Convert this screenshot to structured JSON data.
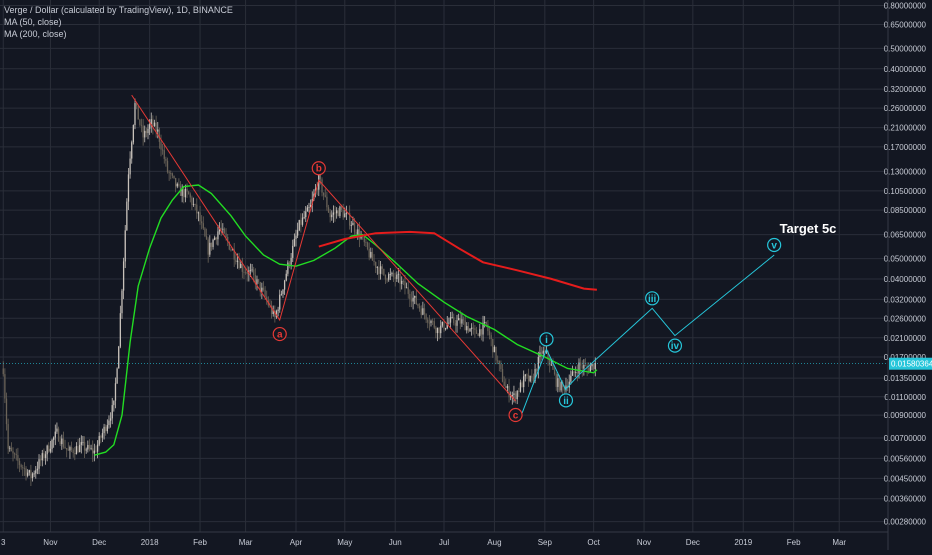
{
  "header": {
    "title": "Verge / Dollar (calculated by TradingView), 1D, BINANCE",
    "ma50": "MA (50, close)",
    "ma200": "MA (200, close)"
  },
  "annotation": {
    "target": "Target 5c"
  },
  "colors": {
    "background": "#131722",
    "grid": "#2a2e39",
    "candle_up": "#c8c2bb",
    "candle_down": "#6b6459",
    "ma50": "#22dd22",
    "ma200": "#e51c1c",
    "abc_lines": "#e53935",
    "projection": "#26c6da",
    "price_tag": "#26c6da"
  },
  "chart_data": {
    "type": "candlestick",
    "title": "Verge / Dollar (calculated by TradingView), 1D, BINANCE",
    "y_scale": "log",
    "ylim": [
      0.0025,
      0.85
    ],
    "x_start": "2017-10-01",
    "x_end": "2019-03-31",
    "y_ticks": [
      "0.80000000",
      "0.65000000",
      "0.50000000",
      "0.40000000",
      "0.32000000",
      "0.26000000",
      "0.21000000",
      "0.17000000",
      "0.13000000",
      "0.10500000",
      "0.08500000",
      "0.06500000",
      "0.05000000",
      "0.04000000",
      "0.03200000",
      "0.02600000",
      "0.02100000",
      "0.01700000",
      "0.01350000",
      "0.01100000",
      "0.00900000",
      "0.00700000",
      "0.00560000",
      "0.00450000",
      "0.00360000",
      "0.00280000"
    ],
    "x_ticks": [
      {
        "label": "3",
        "date": "2017-10-03"
      },
      {
        "label": "Nov",
        "date": "2017-11-01"
      },
      {
        "label": "Dec",
        "date": "2017-12-01"
      },
      {
        "label": "2018",
        "date": "2018-01-01"
      },
      {
        "label": "Feb",
        "date": "2018-02-01"
      },
      {
        "label": "Mar",
        "date": "2018-03-01"
      },
      {
        "label": "Apr",
        "date": "2018-04-01"
      },
      {
        "label": "May",
        "date": "2018-05-01"
      },
      {
        "label": "Jun",
        "date": "2018-06-01"
      },
      {
        "label": "Jul",
        "date": "2018-07-01"
      },
      {
        "label": "Aug",
        "date": "2018-08-01"
      },
      {
        "label": "Sep",
        "date": "2018-09-01"
      },
      {
        "label": "Oct",
        "date": "2018-10-01"
      },
      {
        "label": "Nov",
        "date": "2018-11-01"
      },
      {
        "label": "Dec",
        "date": "2018-12-01"
      },
      {
        "label": "2019",
        "date": "2019-01-01"
      },
      {
        "label": "Feb",
        "date": "2019-02-01"
      },
      {
        "label": "Mar",
        "date": "2019-03-01"
      }
    ],
    "last_price": 0.01580364,
    "last_price_label": "0.01580364",
    "price_path": [
      [
        "2017-10-03",
        0.015
      ],
      [
        "2017-10-06",
        0.0062
      ],
      [
        "2017-10-12",
        0.0054
      ],
      [
        "2017-10-20",
        0.0046
      ],
      [
        "2017-10-28",
        0.0058
      ],
      [
        "2017-11-05",
        0.0074
      ],
      [
        "2017-11-12",
        0.006
      ],
      [
        "2017-11-20",
        0.0064
      ],
      [
        "2017-11-28",
        0.006
      ],
      [
        "2017-12-05",
        0.008
      ],
      [
        "2017-12-10",
        0.01
      ],
      [
        "2017-12-13",
        0.02
      ],
      [
        "2017-12-16",
        0.05
      ],
      [
        "2017-12-19",
        0.13
      ],
      [
        "2017-12-23",
        0.27
      ],
      [
        "2017-12-28",
        0.19
      ],
      [
        "2018-01-02",
        0.22
      ],
      [
        "2018-01-06",
        0.2
      ],
      [
        "2018-01-12",
        0.13
      ],
      [
        "2018-01-19",
        0.105
      ],
      [
        "2018-01-25",
        0.1
      ],
      [
        "2018-01-31",
        0.08
      ],
      [
        "2018-02-06",
        0.055
      ],
      [
        "2018-02-13",
        0.07
      ],
      [
        "2018-02-20",
        0.056
      ],
      [
        "2018-02-27",
        0.045
      ],
      [
        "2018-03-05",
        0.042
      ],
      [
        "2018-03-12",
        0.034
      ],
      [
        "2018-03-19",
        0.026
      ],
      [
        "2018-03-27",
        0.046
      ],
      [
        "2018-04-03",
        0.072
      ],
      [
        "2018-04-10",
        0.088
      ],
      [
        "2018-04-15",
        0.12
      ],
      [
        "2018-04-22",
        0.08
      ],
      [
        "2018-04-28",
        0.085
      ],
      [
        "2018-05-03",
        0.078
      ],
      [
        "2018-05-10",
        0.065
      ],
      [
        "2018-05-18",
        0.049
      ],
      [
        "2018-05-25",
        0.042
      ],
      [
        "2018-06-03",
        0.04
      ],
      [
        "2018-06-10",
        0.034
      ],
      [
        "2018-06-18",
        0.028
      ],
      [
        "2018-06-27",
        0.023
      ],
      [
        "2018-07-05",
        0.025
      ],
      [
        "2018-07-12",
        0.025
      ],
      [
        "2018-07-20",
        0.022
      ],
      [
        "2018-07-27",
        0.024
      ],
      [
        "2018-08-03",
        0.016
      ],
      [
        "2018-08-08",
        0.012
      ],
      [
        "2018-08-13",
        0.011
      ],
      [
        "2018-08-20",
        0.0135
      ],
      [
        "2018-08-24",
        0.013
      ],
      [
        "2018-08-30",
        0.018
      ],
      [
        "2018-09-03",
        0.017
      ],
      [
        "2018-09-08",
        0.013
      ],
      [
        "2018-09-12",
        0.012
      ],
      [
        "2018-09-17",
        0.0135
      ],
      [
        "2018-09-22",
        0.0155
      ],
      [
        "2018-09-27",
        0.015
      ],
      [
        "2018-10-02",
        0.0158
      ]
    ],
    "series": [
      {
        "name": "MA (50, close)",
        "points": [
          [
            "2017-11-28",
            0.0058
          ],
          [
            "2017-12-05",
            0.006
          ],
          [
            "2017-12-10",
            0.0065
          ],
          [
            "2017-12-15",
            0.009
          ],
          [
            "2017-12-20",
            0.02
          ],
          [
            "2017-12-25",
            0.037
          ],
          [
            "2018-01-01",
            0.056
          ],
          [
            "2018-01-08",
            0.078
          ],
          [
            "2018-01-15",
            0.095
          ],
          [
            "2018-01-22",
            0.11
          ],
          [
            "2018-01-31",
            0.112
          ],
          [
            "2018-02-08",
            0.102
          ],
          [
            "2018-02-20",
            0.08
          ],
          [
            "2018-03-01",
            0.064
          ],
          [
            "2018-03-12",
            0.052
          ],
          [
            "2018-03-22",
            0.047
          ],
          [
            "2018-04-01",
            0.046
          ],
          [
            "2018-04-12",
            0.049
          ],
          [
            "2018-04-25",
            0.056
          ],
          [
            "2018-05-05",
            0.064
          ],
          [
            "2018-05-12",
            0.065
          ],
          [
            "2018-05-20",
            0.058
          ],
          [
            "2018-06-01",
            0.048
          ],
          [
            "2018-06-15",
            0.038
          ],
          [
            "2018-07-01",
            0.031
          ],
          [
            "2018-07-15",
            0.0265
          ],
          [
            "2018-08-01",
            0.023
          ],
          [
            "2018-08-15",
            0.0195
          ],
          [
            "2018-09-01",
            0.017
          ],
          [
            "2018-09-15",
            0.015
          ],
          [
            "2018-10-01",
            0.0143
          ],
          [
            "2018-10-03",
            0.0148
          ]
        ]
      },
      {
        "name": "MA (200, close)",
        "points": [
          [
            "2018-04-15",
            0.057
          ],
          [
            "2018-05-01",
            0.062
          ],
          [
            "2018-05-20",
            0.066
          ],
          [
            "2018-06-10",
            0.067
          ],
          [
            "2018-06-25",
            0.066
          ],
          [
            "2018-07-10",
            0.056
          ],
          [
            "2018-07-25",
            0.048
          ],
          [
            "2018-08-15",
            0.044
          ],
          [
            "2018-09-05",
            0.04
          ],
          [
            "2018-09-25",
            0.036
          ],
          [
            "2018-10-03",
            0.0355
          ]
        ]
      }
    ],
    "wave_abc": [
      {
        "label": "a",
        "date": "2018-03-22",
        "price": 0.0255
      },
      {
        "label": "b",
        "date": "2018-04-15",
        "price": 0.118
      },
      {
        "label": "c",
        "date": "2018-08-14",
        "price": 0.0105
      }
    ],
    "abc_start": {
      "date": "2017-12-21",
      "price": 0.3
    },
    "projection_start": {
      "date": "2018-08-18",
      "price": 0.0092
    },
    "wave_projection": [
      {
        "label": "i",
        "date": "2018-09-02",
        "price": 0.0185
      },
      {
        "label": "ii",
        "date": "2018-09-14",
        "price": 0.0118
      },
      {
        "label": "iii",
        "date": "2018-11-06",
        "price": 0.029
      },
      {
        "label": "iv",
        "date": "2018-11-20",
        "price": 0.0215
      },
      {
        "label": "v",
        "date": "2019-01-20",
        "price": 0.052
      }
    ],
    "wave_projection_path": [
      {
        "date": "2018-09-14",
        "price": 0.012
      },
      {
        "date": "2018-09-22",
        "price": 0.014
      },
      {
        "date": "2018-11-06",
        "price": 0.029
      },
      {
        "date": "2018-11-20",
        "price": 0.0215
      },
      {
        "date": "2019-01-20",
        "price": 0.052
      }
    ]
  }
}
